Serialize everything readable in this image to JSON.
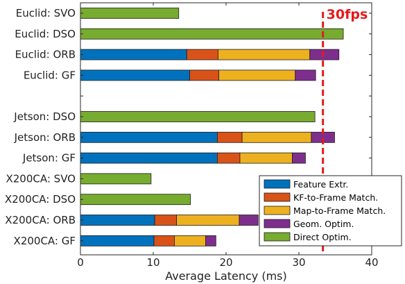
{
  "chart_data": {
    "type": "bar",
    "orientation": "horizontal",
    "stacked": true,
    "xlabel": "Average Latency (ms)",
    "xlim": [
      0,
      40
    ],
    "xticks": [
      0,
      10,
      20,
      30,
      40
    ],
    "grid": false,
    "legend_position": "bottom-right",
    "categories": [
      "Euclid: SVO",
      "Euclid: DSO",
      "Euclid: ORB",
      "Euclid: GF",
      "",
      "Jetson: DSO",
      "Jetson: ORB",
      "Jetson: GF",
      "X200CA: SVO",
      "X200CA: DSO",
      "X200CA: ORB",
      "X200CA: GF"
    ],
    "series": [
      {
        "name": "Feature Extr.",
        "color": "#0072BD",
        "values": [
          0,
          0,
          14.6,
          15.0,
          0,
          0,
          18.8,
          18.8,
          0,
          0,
          10.2,
          10.1
        ]
      },
      {
        "name": "KF-to-Frame Match.",
        "color": "#D95319",
        "values": [
          0,
          0,
          4.3,
          4.0,
          0,
          0,
          3.4,
          3.1,
          0,
          0,
          3.0,
          2.8
        ]
      },
      {
        "name": "Map-to-Frame Match.",
        "color": "#EDB120",
        "values": [
          0,
          0,
          12.6,
          10.5,
          0,
          0,
          9.5,
          7.2,
          0,
          0,
          8.6,
          4.3
        ]
      },
      {
        "name": "Geom. Optim.",
        "color": "#7E2F8E",
        "values": [
          0,
          0,
          4.0,
          2.8,
          0,
          0,
          3.2,
          1.8,
          0,
          0,
          2.6,
          1.4
        ]
      },
      {
        "name": "Direct Optim.",
        "color": "#77AC30",
        "values": [
          13.5,
          36.1,
          0,
          0,
          0,
          32.2,
          0,
          0,
          9.7,
          15.1,
          0,
          0
        ]
      }
    ],
    "reference_line": {
      "value": 33.3,
      "label": "30fps",
      "color": "#E41A1C"
    }
  }
}
